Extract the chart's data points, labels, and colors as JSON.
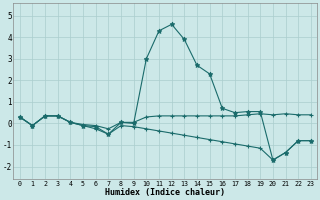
{
  "xlabel": "Humidex (Indice chaleur)",
  "xlim": [
    -0.5,
    23.5
  ],
  "ylim": [
    -2.6,
    5.6
  ],
  "xticks": [
    0,
    1,
    2,
    3,
    4,
    5,
    6,
    7,
    8,
    9,
    10,
    11,
    12,
    13,
    14,
    15,
    16,
    17,
    18,
    19,
    20,
    21,
    22,
    23
  ],
  "yticks": [
    -2,
    -1,
    0,
    1,
    2,
    3,
    4,
    5
  ],
  "background_color": "#cce8e8",
  "grid_color": "#aacece",
  "line_color": "#1a6b6b",
  "series1_y": [
    0.3,
    -0.1,
    0.35,
    0.35,
    0.05,
    -0.1,
    -0.15,
    -0.5,
    0.05,
    0.0,
    3.0,
    4.3,
    4.6,
    3.9,
    2.7,
    2.3,
    0.7,
    0.5,
    0.55,
    0.55,
    -1.7,
    -1.35,
    -0.8,
    -0.8
  ],
  "series2_y": [
    0.3,
    -0.1,
    0.35,
    0.35,
    0.05,
    -0.05,
    -0.1,
    -0.25,
    0.05,
    0.05,
    0.3,
    0.35,
    0.35,
    0.35,
    0.35,
    0.35,
    0.35,
    0.35,
    0.4,
    0.45,
    0.4,
    0.45,
    0.4,
    0.4
  ],
  "series3_y": [
    0.3,
    -0.1,
    0.35,
    0.35,
    0.05,
    -0.1,
    -0.25,
    -0.5,
    -0.1,
    -0.15,
    -0.25,
    -0.35,
    -0.45,
    -0.55,
    -0.65,
    -0.75,
    -0.85,
    -0.95,
    -1.05,
    -1.15,
    -1.7,
    -1.35,
    -0.8,
    -0.8
  ]
}
